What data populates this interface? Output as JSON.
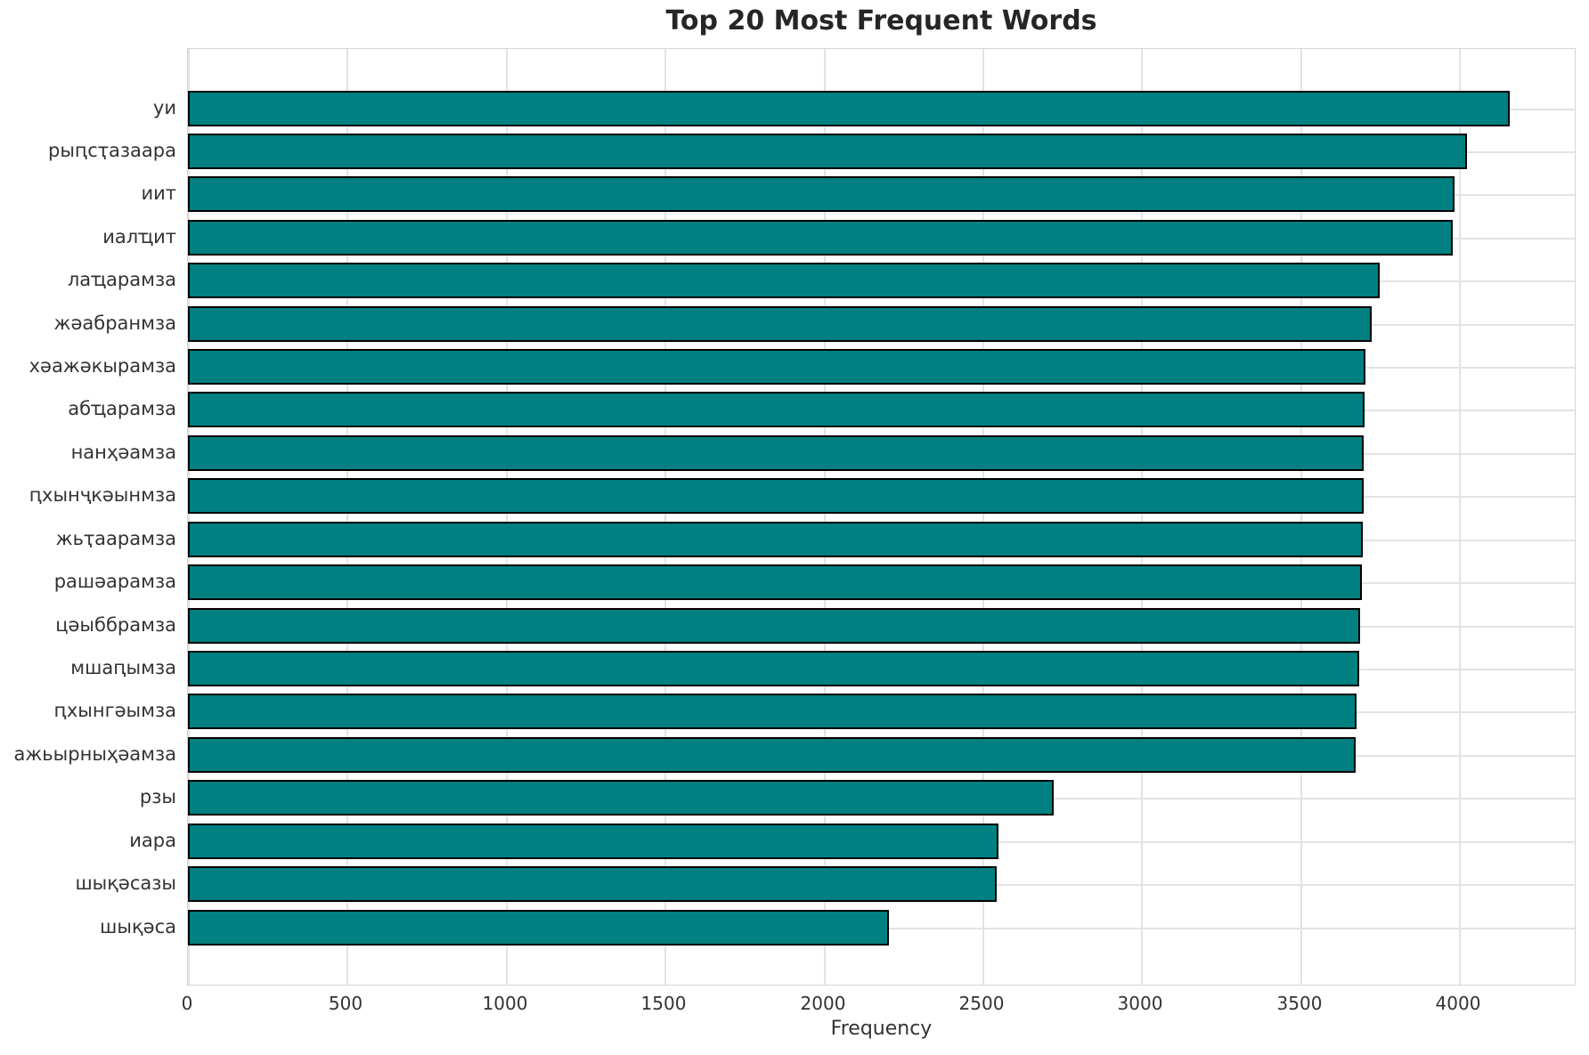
{
  "chart_data": {
    "type": "bar",
    "orientation": "horizontal",
    "title": "Top 20 Most Frequent Words",
    "xlabel": "Frequency",
    "ylabel": "",
    "categories": [
      "уи",
      "рыԥсҭазаара",
      "иит",
      "иалҵит",
      "лаҵарамза",
      "жәабранмза",
      "хәажәкырамза",
      "абҵарамза",
      "нанҳәамза",
      "ԥхынҷкәынмза",
      "жьҭаарамза",
      "рашәарамза",
      "цәыббрамза",
      "мшаԥымза",
      "ԥхынгәымза",
      "ажьырныҳәамза",
      "рзы",
      "иара",
      "шықәсазы",
      "шықәса"
    ],
    "values": [
      4160,
      4025,
      3985,
      3980,
      3750,
      3725,
      3705,
      3702,
      3700,
      3699,
      3697,
      3695,
      3690,
      3686,
      3678,
      3675,
      2725,
      2550,
      2545,
      2205
    ],
    "xlim": [
      0,
      4370
    ],
    "xticks": [
      0,
      500,
      1000,
      1500,
      2000,
      2500,
      3000,
      3500,
      4000
    ],
    "grid": true,
    "legend": null,
    "bar_color": "#008080",
    "bar_edge_color": "#000000",
    "grid_color": "#e3e3e3",
    "background_color": "#ffffff",
    "text_color": "#333333",
    "title_color": "#262626"
  }
}
